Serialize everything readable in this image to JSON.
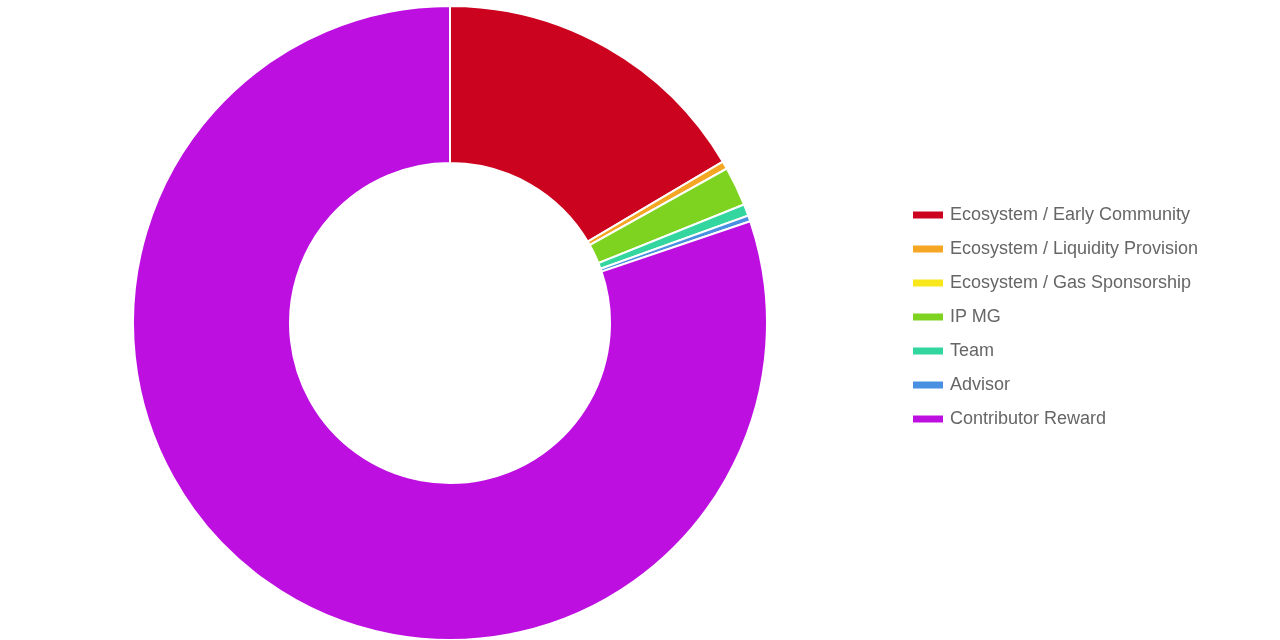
{
  "chart_data": {
    "type": "donut",
    "categories": [
      "Ecosystem / Early Community",
      "Ecosystem / Liquidity Provision",
      "Ecosystem / Gas Sponsorship",
      "IP MG",
      "Team",
      "Advisor",
      "Contributor Reward"
    ],
    "values": [
      16.5,
      0.4,
      0,
      2.0,
      0.6,
      0.3,
      80.2
    ],
    "colors": [
      "#cc031e",
      "#f5a623",
      "#f8e71c",
      "#7ed321",
      "#33d69f",
      "#4a90e2",
      "#bd10e0"
    ],
    "legend": "right"
  }
}
